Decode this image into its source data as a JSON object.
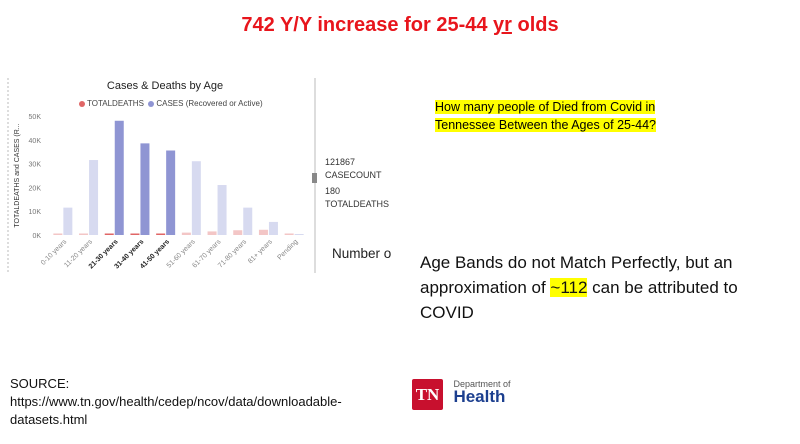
{
  "slide": {
    "title_pre": "742 Y/Y increase for 25-44 ",
    "title_yr": "yr",
    "title_post": " olds",
    "question_line1": "How many people of Died from Covid in",
    "question_line2": "Tennessee Between the Ages of 25-44?",
    "statement_pre": "Age Bands do not Match Perfectly, but an approximation of ",
    "statement_highlight": "~112",
    "statement_post": " can be attributed to COVID",
    "number_clip": "Number o",
    "source_label": "SOURCE:",
    "source_line1": "https://www.tn.gov/health/cedep/ncov/data/downloadable-",
    "source_line2": "datasets.html",
    "logo_mark": "TN",
    "logo_dept": "Department of",
    "logo_health": "Health",
    "highlight_color": "#ffff00",
    "title_color": "#e8151c"
  },
  "kpis": {
    "casecount_value": "121867",
    "casecount_label": "CASECOUNT",
    "deaths_value": "180",
    "deaths_label": "TOTALDEATHS"
  },
  "chart_data": {
    "type": "bar",
    "title": "Cases & Deaths by Age",
    "ylabel": "TOTALDEATHS and CASES (R...",
    "xlabel": "",
    "ylim": [
      0,
      50000
    ],
    "yticks": [
      "0K",
      "10K",
      "20K",
      "30K",
      "40K",
      "50K"
    ],
    "categories": [
      "0-10 years",
      "11-20 years",
      "21-30 years",
      "31-40 years",
      "41-50 years",
      "51-60 years",
      "61-70 years",
      "71-80 years",
      "81+ years",
      "Pending"
    ],
    "highlighted_categories": [
      "21-30 years",
      "31-40 years",
      "41-50 years"
    ],
    "series": [
      {
        "name": "TOTALDEATHS",
        "color": "#e06666",
        "faded_color": "#f3c6c6",
        "values": [
          0,
          5,
          60,
          180,
          500,
          1000,
          1500,
          2000,
          2200,
          0
        ]
      },
      {
        "name": "CASES (Recovered or Active)",
        "color": "#8f95d3",
        "faded_color": "#d7daf0",
        "values": [
          11500,
          31500,
          48000,
          38500,
          35500,
          31000,
          21000,
          11500,
          5500,
          300
        ]
      }
    ]
  }
}
